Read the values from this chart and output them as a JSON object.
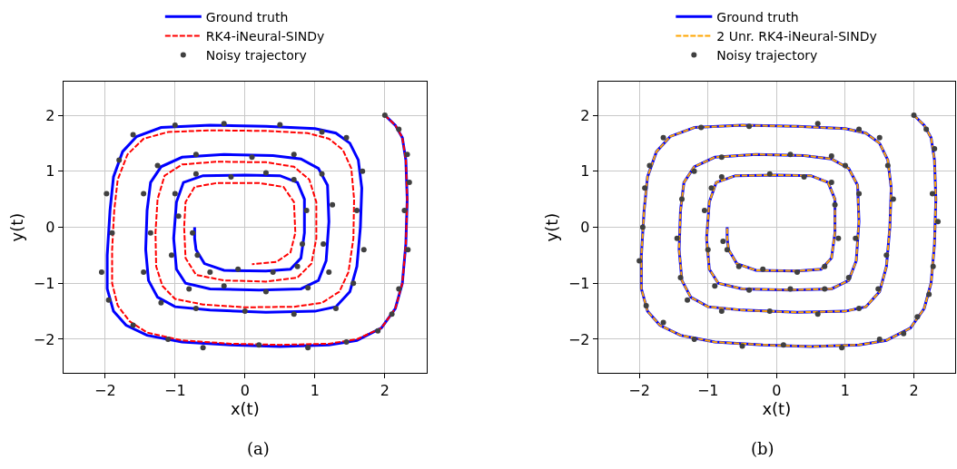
{
  "chart_data": [
    {
      "type": "line",
      "xlabel": "x(t)",
      "ylabel": "y(t)",
      "annotations": [
        "(a)"
      ],
      "grid": true,
      "legend": "top",
      "xlim": [
        -2.6,
        2.6
      ],
      "ylim": [
        -2.6,
        2.6
      ],
      "xticks": [
        -2,
        -1,
        0,
        1,
        2
      ],
      "yticks": [
        -2,
        -1,
        0,
        1,
        2
      ],
      "series": [
        {
          "name": "Ground truth",
          "line_style": "solid",
          "color": "#0000ff",
          "x": [
            2,
            2.15,
            2.25,
            2.3,
            2.32,
            2.3,
            2.25,
            2.15,
            1.95,
            1.6,
            1.2,
            0.5,
            -0.2,
            -0.9,
            -1.4,
            -1.7,
            -1.88,
            -1.97,
            -1.97,
            -1.93,
            -1.88,
            -1.75,
            -1.55,
            -1.2,
            -0.5,
            0.3,
            1.0,
            1.3,
            1.5,
            1.62,
            1.67,
            1.65,
            1.6,
            1.5,
            1.3,
            1.0,
            0.3,
            -0.5,
            -1.0,
            -1.25,
            -1.38,
            -1.42,
            -1.4,
            -1.35,
            -1.2,
            -0.9,
            -0.3,
            0.4,
            0.8,
            1.05,
            1.18,
            1.2,
            1.16,
            1.05,
            0.8,
            0.2,
            -0.5,
            -0.85,
            -0.98,
            -1.02,
            -0.98,
            -0.88,
            -0.6,
            0,
            0.5,
            0.75,
            0.85,
            0.85,
            0.8,
            0.65,
            0.3,
            -0.3,
            -0.58,
            -0.7,
            -0.72,
            -0.72
          ],
          "values": [
            2,
            1.82,
            1.6,
            1.2,
            0.5,
            -0.3,
            -1.0,
            -1.45,
            -1.8,
            -2.02,
            -2.1,
            -2.13,
            -2.1,
            -2.05,
            -1.93,
            -1.75,
            -1.5,
            -1.1,
            -0.5,
            0.3,
            0.9,
            1.35,
            1.62,
            1.78,
            1.82,
            1.8,
            1.76,
            1.68,
            1.5,
            1.2,
            0.7,
            0,
            -0.7,
            -1.15,
            -1.42,
            -1.5,
            -1.52,
            -1.48,
            -1.42,
            -1.25,
            -0.95,
            -0.4,
            0.3,
            0.8,
            1.08,
            1.25,
            1.3,
            1.28,
            1.22,
            1.05,
            0.75,
            0.1,
            -0.6,
            -0.95,
            -1.1,
            -1.12,
            -1.1,
            -1.0,
            -0.75,
            -0.2,
            0.45,
            0.8,
            0.92,
            0.93,
            0.92,
            0.8,
            0.5,
            -0.1,
            -0.55,
            -0.75,
            -0.78,
            -0.77,
            -0.65,
            -0.4,
            -0.2,
            0.0
          ]
        },
        {
          "name": "RK4-iNeural-SINDy",
          "line_style": "dashed",
          "color": "#ff0000",
          "x": [
            2,
            2.15,
            2.25,
            2.3,
            2.32,
            2.3,
            2.25,
            2.15,
            1.95,
            1.6,
            1.2,
            0.5,
            -0.2,
            -0.9,
            -1.4,
            -1.65,
            -1.82,
            -1.9,
            -1.9,
            -1.87,
            -1.82,
            -1.68,
            -1.45,
            -1.1,
            -0.5,
            0.3,
            0.9,
            1.2,
            1.4,
            1.52,
            1.56,
            1.55,
            1.48,
            1.35,
            1.1,
            0.7,
            0,
            -0.6,
            -1.0,
            -1.18,
            -1.27,
            -1.28,
            -1.25,
            -1.15,
            -0.9,
            -0.4,
            0.3,
            0.7,
            0.92,
            1.02,
            1.02,
            0.95,
            0.75,
            0.3,
            -0.3,
            -0.7,
            -0.85,
            -0.87,
            -0.85,
            -0.72,
            -0.4,
            0.2,
            0.55,
            0.7,
            0.72,
            0.65,
            0.45,
            0.1
          ],
          "values": [
            2,
            1.82,
            1.6,
            1.2,
            0.5,
            -0.3,
            -1.0,
            -1.45,
            -1.8,
            -2.0,
            -2.08,
            -2.1,
            -2.08,
            -2.02,
            -1.88,
            -1.68,
            -1.4,
            -1.0,
            -0.4,
            0.3,
            0.85,
            1.3,
            1.58,
            1.7,
            1.73,
            1.72,
            1.68,
            1.58,
            1.38,
            1.05,
            0.5,
            -0.2,
            -0.8,
            -1.15,
            -1.35,
            -1.42,
            -1.43,
            -1.38,
            -1.28,
            -1.05,
            -0.7,
            -0.1,
            0.5,
            0.92,
            1.12,
            1.17,
            1.16,
            1.08,
            0.85,
            0.45,
            -0.2,
            -0.65,
            -0.9,
            -0.97,
            -0.95,
            -0.85,
            -0.55,
            0.0,
            0.45,
            0.72,
            0.79,
            0.79,
            0.72,
            0.45,
            -0.1,
            -0.45,
            -0.62,
            -0.66
          ]
        },
        {
          "name": "Noisy trajectory",
          "type": "scatter",
          "marker": "circle",
          "color": "#404040",
          "x": [
            2.0,
            2.2,
            2.32,
            2.35,
            2.28,
            2.33,
            2.2,
            2.1,
            1.9,
            1.45,
            0.9,
            0.2,
            -0.6,
            -1.1,
            -1.6,
            -1.95,
            -2.05,
            -1.9,
            -1.98,
            -1.8,
            -1.6,
            -1.0,
            -0.3,
            0.5,
            1.1,
            1.45,
            1.68,
            1.6,
            1.7,
            1.55,
            1.3,
            0.7,
            0,
            -0.7,
            -1.2,
            -1.45,
            -1.35,
            -1.45,
            -1.25,
            -0.7,
            0.1,
            0.7,
            1.1,
            1.25,
            1.12,
            1.2,
            0.9,
            0.3,
            -0.3,
            -0.8,
            -1.05,
            -0.95,
            -1.0,
            -0.7,
            -0.2,
            0.3,
            0.7,
            0.88,
            0.82,
            0.75,
            0.4,
            -0.1,
            -0.5,
            -0.68,
            -0.75
          ],
          "values": [
            2.0,
            1.75,
            1.3,
            0.8,
            0.3,
            -0.4,
            -1.1,
            -1.55,
            -1.85,
            -2.05,
            -2.15,
            -2.1,
            -2.15,
            -2.0,
            -1.75,
            -1.3,
            -0.8,
            -0.1,
            0.6,
            1.2,
            1.65,
            1.82,
            1.85,
            1.83,
            1.7,
            1.6,
            1.0,
            0.3,
            -0.4,
            -1.0,
            -1.45,
            -1.55,
            -1.5,
            -1.45,
            -1.35,
            -0.8,
            -0.1,
            0.6,
            1.1,
            1.3,
            1.25,
            1.3,
            0.95,
            0.4,
            -0.3,
            -0.8,
            -1.08,
            -1.15,
            -1.05,
            -1.1,
            -0.5,
            0.2,
            0.6,
            0.95,
            0.9,
            0.97,
            0.85,
            0.3,
            -0.3,
            -0.7,
            -0.8,
            -0.75,
            -0.8,
            -0.5,
            -0.1
          ]
        }
      ]
    },
    {
      "type": "line",
      "xlabel": "x(t)",
      "ylabel": "y(t)",
      "annotations": [
        "(b)"
      ],
      "grid": true,
      "legend": "top",
      "xlim": [
        -2.6,
        2.6
      ],
      "ylim": [
        -2.6,
        2.6
      ],
      "xticks": [
        -2,
        -1,
        0,
        1,
        2
      ],
      "yticks": [
        -2,
        -1,
        0,
        1,
        2
      ],
      "series": [
        {
          "name": "Ground truth",
          "line_style": "solid",
          "color": "#0000ff",
          "x": [
            2,
            2.15,
            2.25,
            2.3,
            2.32,
            2.3,
            2.25,
            2.15,
            1.95,
            1.6,
            1.2,
            0.5,
            -0.2,
            -0.9,
            -1.4,
            -1.7,
            -1.88,
            -1.97,
            -1.97,
            -1.93,
            -1.88,
            -1.75,
            -1.55,
            -1.2,
            -0.5,
            0.3,
            1.0,
            1.3,
            1.5,
            1.62,
            1.67,
            1.65,
            1.6,
            1.5,
            1.3,
            1.0,
            0.3,
            -0.5,
            -1.0,
            -1.25,
            -1.38,
            -1.42,
            -1.4,
            -1.35,
            -1.2,
            -0.9,
            -0.3,
            0.4,
            0.8,
            1.05,
            1.18,
            1.2,
            1.16,
            1.05,
            0.8,
            0.2,
            -0.5,
            -0.85,
            -0.98,
            -1.02,
            -0.98,
            -0.88,
            -0.6,
            0,
            0.5,
            0.75,
            0.85,
            0.85,
            0.8,
            0.65,
            0.3,
            -0.3,
            -0.58,
            -0.7,
            -0.72,
            -0.72
          ],
          "values": [
            2,
            1.82,
            1.6,
            1.2,
            0.5,
            -0.3,
            -1.0,
            -1.45,
            -1.8,
            -2.02,
            -2.1,
            -2.13,
            -2.1,
            -2.05,
            -1.93,
            -1.75,
            -1.5,
            -1.1,
            -0.5,
            0.3,
            0.9,
            1.35,
            1.62,
            1.78,
            1.82,
            1.8,
            1.76,
            1.68,
            1.5,
            1.2,
            0.7,
            0,
            -0.7,
            -1.15,
            -1.42,
            -1.5,
            -1.52,
            -1.48,
            -1.42,
            -1.25,
            -0.95,
            -0.4,
            0.3,
            0.8,
            1.08,
            1.25,
            1.3,
            1.28,
            1.22,
            1.05,
            0.75,
            0.1,
            -0.6,
            -0.95,
            -1.1,
            -1.12,
            -1.1,
            -1.0,
            -0.75,
            -0.2,
            0.45,
            0.8,
            0.92,
            0.93,
            0.92,
            0.8,
            0.5,
            -0.1,
            -0.55,
            -0.75,
            -0.78,
            -0.77,
            -0.65,
            -0.4,
            -0.2,
            0.0
          ]
        },
        {
          "name": "2 Unr. RK4-iNeural-SINDy",
          "line_style": "dashed",
          "color": "#ffa500",
          "x": [
            2,
            2.15,
            2.25,
            2.3,
            2.32,
            2.3,
            2.25,
            2.15,
            1.95,
            1.6,
            1.2,
            0.5,
            -0.2,
            -0.9,
            -1.4,
            -1.7,
            -1.88,
            -1.97,
            -1.97,
            -1.93,
            -1.88,
            -1.75,
            -1.55,
            -1.2,
            -0.5,
            0.3,
            1.0,
            1.3,
            1.5,
            1.62,
            1.67,
            1.65,
            1.6,
            1.5,
            1.3,
            1.0,
            0.3,
            -0.5,
            -1.0,
            -1.25,
            -1.38,
            -1.42,
            -1.4,
            -1.35,
            -1.2,
            -0.9,
            -0.3,
            0.4,
            0.8,
            1.05,
            1.18,
            1.2,
            1.16,
            1.05,
            0.8,
            0.2,
            -0.5,
            -0.85,
            -0.98,
            -1.02,
            -0.98,
            -0.88,
            -0.6,
            0,
            0.5,
            0.75,
            0.85,
            0.85,
            0.8,
            0.65,
            0.3,
            -0.3,
            -0.58,
            -0.7,
            -0.72,
            -0.72
          ],
          "values": [
            2,
            1.82,
            1.6,
            1.2,
            0.5,
            -0.3,
            -1.0,
            -1.45,
            -1.8,
            -2.02,
            -2.1,
            -2.13,
            -2.1,
            -2.05,
            -1.93,
            -1.75,
            -1.5,
            -1.1,
            -0.5,
            0.3,
            0.9,
            1.35,
            1.62,
            1.78,
            1.82,
            1.8,
            1.76,
            1.68,
            1.5,
            1.2,
            0.7,
            0,
            -0.7,
            -1.15,
            -1.42,
            -1.5,
            -1.52,
            -1.48,
            -1.42,
            -1.25,
            -0.95,
            -0.4,
            0.3,
            0.8,
            1.08,
            1.25,
            1.3,
            1.28,
            1.22,
            1.05,
            0.75,
            0.1,
            -0.6,
            -0.95,
            -1.1,
            -1.12,
            -1.1,
            -1.0,
            -0.75,
            -0.2,
            0.45,
            0.8,
            0.92,
            0.93,
            0.92,
            0.8,
            0.5,
            -0.1,
            -0.55,
            -0.75,
            -0.78,
            -0.77,
            -0.65,
            -0.4,
            -0.2,
            0.0
          ]
        },
        {
          "name": "Noisy trajectory",
          "type": "scatter",
          "marker": "circle",
          "color": "#404040",
          "x": [
            2.0,
            2.18,
            2.3,
            2.27,
            2.35,
            2.28,
            2.22,
            2.05,
            1.85,
            1.5,
            0.95,
            0.1,
            -0.5,
            -1.2,
            -1.65,
            -1.9,
            -2.0,
            -1.95,
            -1.92,
            -1.85,
            -1.65,
            -1.1,
            -0.4,
            0.6,
            1.2,
            1.5,
            1.62,
            1.7,
            1.6,
            1.48,
            1.2,
            0.6,
            -0.1,
            -0.8,
            -1.3,
            -1.4,
            -1.45,
            -1.38,
            -1.2,
            -0.8,
            0.2,
            0.8,
            1.0,
            1.2,
            1.15,
            1.05,
            0.7,
            0.2,
            -0.4,
            -0.9,
            -1.0,
            -1.05,
            -0.95,
            -0.8,
            -0.1,
            0.4,
            0.8,
            0.85,
            0.9,
            0.7,
            0.3,
            -0.2,
            -0.55,
            -0.72,
            -0.78
          ],
          "values": [
            2.0,
            1.75,
            1.4,
            0.6,
            0.1,
            -0.7,
            -1.2,
            -1.6,
            -1.9,
            -2.0,
            -2.15,
            -2.1,
            -2.12,
            -2.0,
            -1.7,
            -1.4,
            -0.6,
            0.0,
            0.7,
            1.1,
            1.6,
            1.78,
            1.8,
            1.85,
            1.75,
            1.6,
            1.1,
            0.5,
            -0.5,
            -1.1,
            -1.45,
            -1.55,
            -1.5,
            -1.5,
            -1.3,
            -0.9,
            -0.2,
            0.5,
            1.0,
            1.25,
            1.3,
            1.27,
            1.1,
            0.6,
            -0.2,
            -0.9,
            -1.1,
            -1.1,
            -1.12,
            -1.05,
            -0.4,
            0.3,
            0.7,
            0.9,
            0.95,
            0.9,
            0.8,
            0.4,
            -0.2,
            -0.7,
            -0.8,
            -0.75,
            -0.7,
            -0.4,
            -0.25
          ]
        }
      ]
    }
  ]
}
